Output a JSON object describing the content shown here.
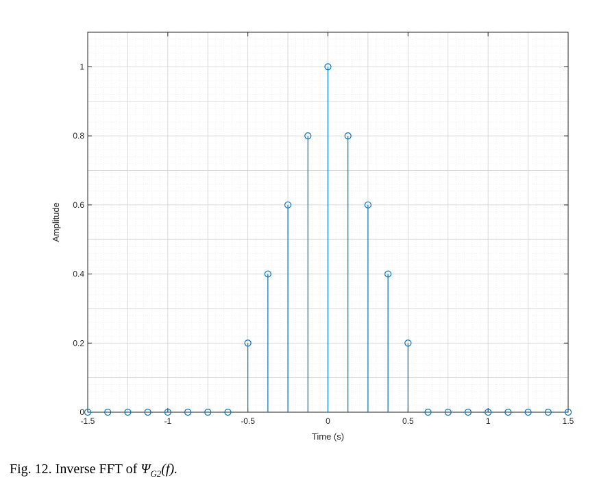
{
  "chart_data": {
    "type": "stem",
    "title": "",
    "xlabel": "Time (s)",
    "ylabel": "Amplitude",
    "xlim": [
      -1.5,
      1.5
    ],
    "ylim": [
      0,
      1.1
    ],
    "x_ticks": [
      -1.5,
      -1,
      -0.5,
      0,
      0.5,
      1,
      1.5
    ],
    "x_tick_labels": [
      "-1.5",
      "-1",
      "-0.5",
      "0",
      "0.5",
      "1",
      "1.5"
    ],
    "y_ticks": [
      0,
      0.2,
      0.4,
      0.6,
      0.8,
      1
    ],
    "y_tick_labels": [
      "0",
      "0.2",
      "0.4",
      "0.6",
      "0.8",
      "1"
    ],
    "grid": true,
    "minor_grid": true,
    "color": "#0072BD",
    "x": [
      -1.5,
      -1.375,
      -1.25,
      -1.125,
      -1,
      -0.875,
      -0.75,
      -0.625,
      -0.5,
      -0.375,
      -0.25,
      -0.125,
      0,
      0.125,
      0.25,
      0.375,
      0.5,
      0.625,
      0.75,
      0.875,
      1,
      1.125,
      1.25,
      1.375,
      1.5
    ],
    "values": [
      0,
      0,
      0,
      0,
      0,
      0,
      0,
      0,
      0.2,
      0.4,
      0.6,
      0.8,
      1,
      0.8,
      0.6,
      0.4,
      0.2,
      0,
      0,
      0,
      0,
      0,
      0,
      0,
      0
    ]
  },
  "caption": {
    "prefix": "Fig.  12. Inverse FFT of ",
    "symbol": "Ψ",
    "subscript": "G2",
    "suffix": "(f)."
  }
}
